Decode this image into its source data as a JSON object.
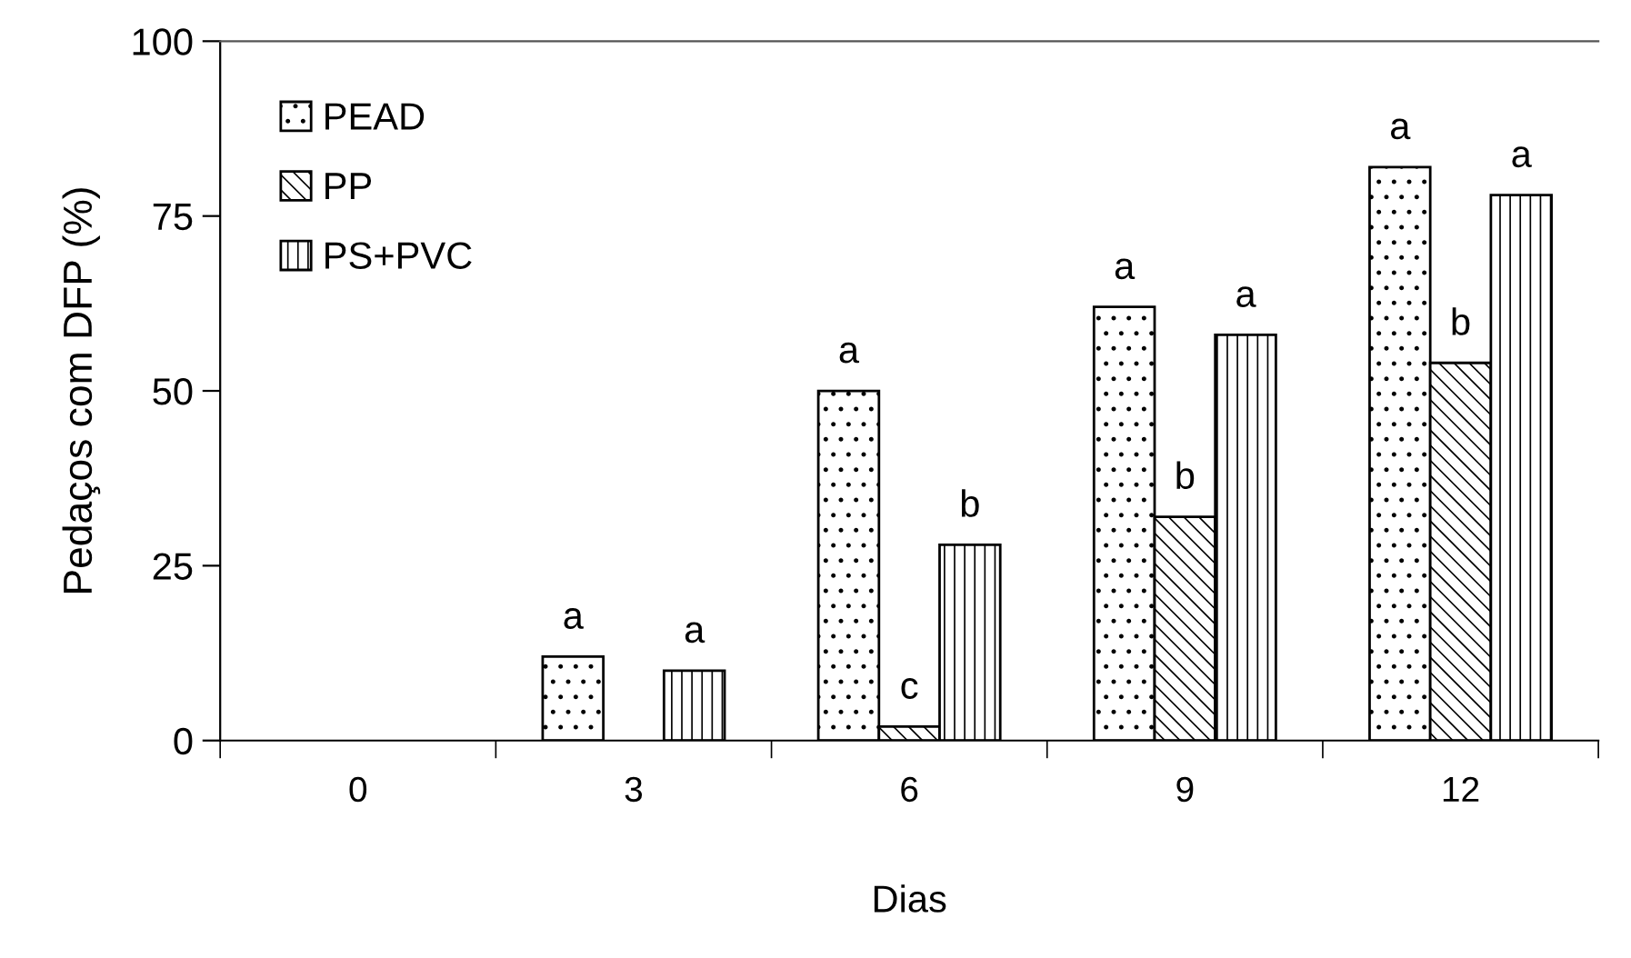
{
  "chart_data": {
    "type": "bar",
    "xlabel": "Dias",
    "ylabel": "Pedaços com DFP (%)",
    "categories": [
      "0",
      "3",
      "6",
      "9",
      "12"
    ],
    "series": [
      {
        "name": "PEAD",
        "values": [
          0,
          12,
          50,
          62,
          82
        ],
        "value_labels": [
          null,
          "a",
          "a",
          "a",
          "a"
        ]
      },
      {
        "name": "PP",
        "values": [
          0,
          0,
          2,
          32,
          54
        ],
        "value_labels": [
          null,
          null,
          "c",
          "b",
          "b"
        ]
      },
      {
        "name": "PS+PVC",
        "values": [
          0,
          10,
          28,
          58,
          78
        ],
        "value_labels": [
          null,
          "a",
          "b",
          "a",
          "a"
        ]
      }
    ],
    "ylim": [
      0,
      100
    ],
    "yticks": [
      0,
      25,
      50,
      75,
      100
    ],
    "grid": false,
    "legend": "top left"
  }
}
